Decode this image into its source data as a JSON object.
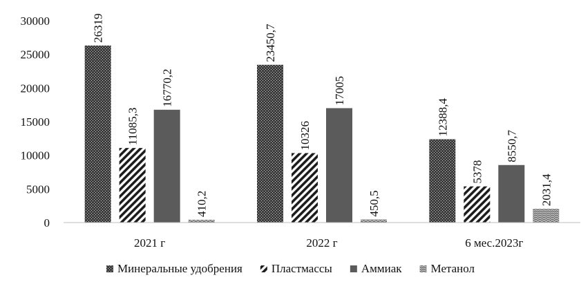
{
  "chart_data": {
    "type": "bar",
    "categories": [
      "2021 г",
      "2022 г",
      "6 мес.2023г"
    ],
    "series": [
      {
        "name": "Минеральные удобрения",
        "values": [
          26319,
          23450.7,
          12388.4
        ],
        "labels": [
          "26319",
          "23450,7",
          "12388,4"
        ],
        "pattern": "dots"
      },
      {
        "name": "Пластмассы",
        "values": [
          11085.3,
          10326,
          5378
        ],
        "labels": [
          "11085,3",
          "10326",
          "5378"
        ],
        "pattern": "diagonal"
      },
      {
        "name": "Аммиак",
        "values": [
          16770.2,
          17005,
          8550.7
        ],
        "labels": [
          "16770,2",
          "17005",
          "8550,7"
        ],
        "pattern": "solid"
      },
      {
        "name": "Метанол",
        "values": [
          410.2,
          450.5,
          2031.4
        ],
        "labels": [
          "410,2",
          "450,5",
          "2031,4"
        ],
        "pattern": "wave"
      }
    ],
    "yticks": [
      "0",
      "5000",
      "10000",
      "15000",
      "20000",
      "25000",
      "30000"
    ],
    "ylim": [
      0,
      30000
    ],
    "grid": false,
    "legend_position": "bottom",
    "colors": {
      "bar_dark": "#4a4a4a",
      "bar_solid": "#5b5b5b",
      "axis": "#bfbfbf",
      "text": "#111111"
    }
  }
}
